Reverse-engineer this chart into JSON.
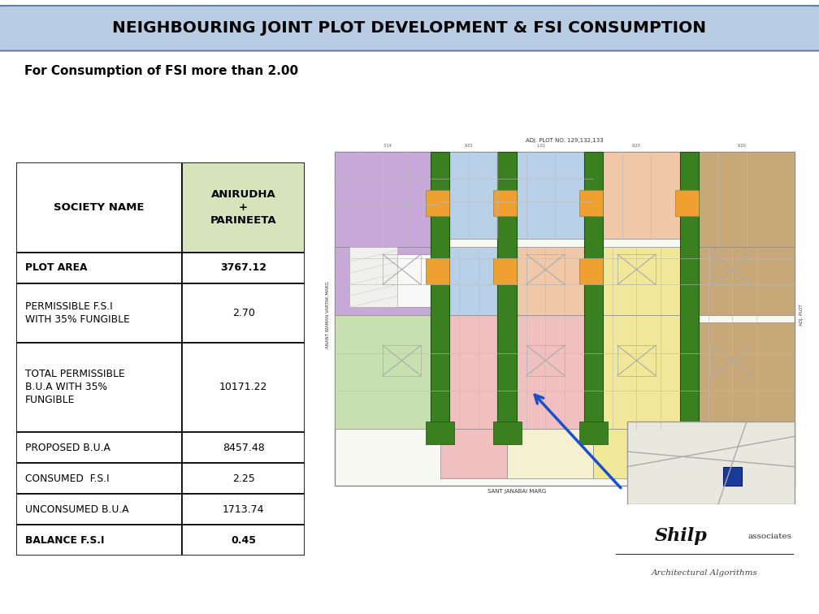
{
  "title": "NEIGHBOURING JOINT PLOT DEVELOPMENT & FSI CONSUMPTION",
  "subtitle": "For Consumption of FSI more than 2.00",
  "title_bg": "#b8cce4",
  "title_fg": "#000000",
  "table_header_col1": "SOCIETY NAME",
  "table_header_col2": "ANIRUDHA\n+\nPARINEETA",
  "table_header_col2_bg": "#d6e4bc",
  "table_rows": [
    [
      "PLOT AREA",
      "3767.12"
    ],
    [
      "PERMISSIBLE F.S.I\nWITH 35% FUNGIBLE",
      "2.70"
    ],
    [
      "TOTAL PERMISSIBLE\nB.U.A WITH 35%\nFUNGIBLE",
      "10171.22"
    ],
    [
      "PROPOSED B.U.A",
      "8457.48"
    ],
    [
      "CONSUMED  F.S.I",
      "2.25"
    ],
    [
      "UNCONSUMED B.U.A",
      "1713.74"
    ],
    [
      "BALANCE F.S.I",
      "0.45"
    ]
  ],
  "table_border_color": "#000000",
  "bg_color": "#ffffff",
  "bottom_bar_color": "#2e5fa3",
  "plan_bg": "#f5f5f0",
  "plan_border": "#888888",
  "purple_color": "#c8a8d8",
  "blue_color": "#b8d0e8",
  "peach_color": "#f0c8a8",
  "brown_color": "#c8a878",
  "green_light": "#c8e0b0",
  "pink_color": "#f0c0c0",
  "yellow_color": "#f0e898",
  "green_dark": "#3a8020",
  "orange_color": "#f0a030",
  "arrow_color": "#1a50cc"
}
